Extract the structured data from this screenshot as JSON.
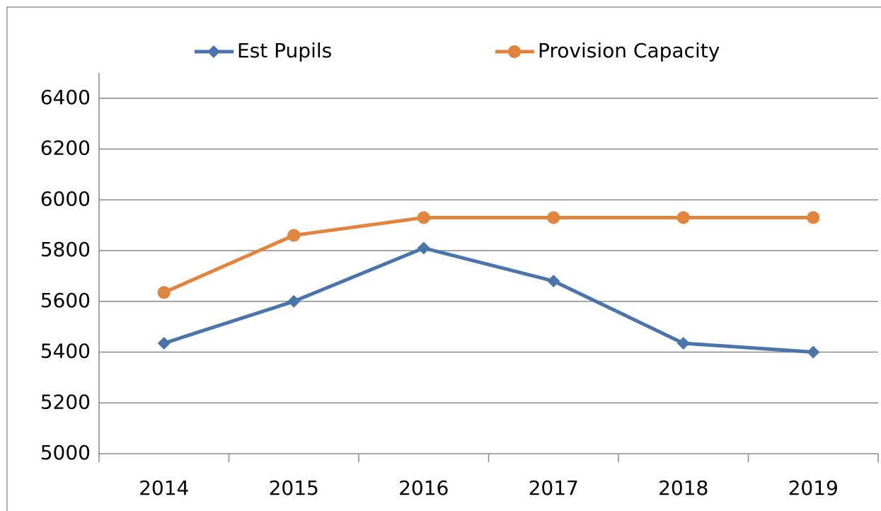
{
  "chart_data": {
    "type": "line",
    "categories": [
      "2014",
      "2015",
      "2016",
      "2017",
      "2018",
      "2019"
    ],
    "series": [
      {
        "name": "Est Pupils",
        "color": "#4a74aa",
        "marker": "diamond",
        "values": [
          5435,
          5600,
          5810,
          5680,
          5435,
          5400
        ]
      },
      {
        "name": "Provision Capacity",
        "color": "#e0843e",
        "marker": "circle",
        "values": [
          5635,
          5860,
          5930,
          5930,
          5930,
          5930
        ]
      }
    ],
    "ylim": [
      5000,
      6500
    ],
    "yticks": [
      5000,
      5200,
      5400,
      5600,
      5800,
      6000,
      6200,
      6400
    ],
    "grid": true,
    "legend": "top"
  }
}
